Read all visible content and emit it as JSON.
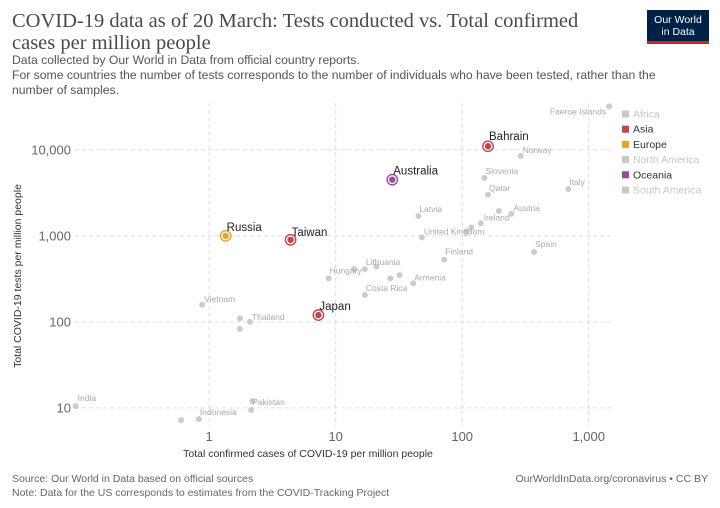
{
  "title": "COVID-19 data as of 20 March: Tests conducted vs. Total confirmed cases per million people",
  "subtitle": [
    "Data collected by Our World in Data from official country reports.",
    "For some countries the number of tests corresponds to the number of individuals who have been tested, rather than the",
    "number of samples."
  ],
  "logo": {
    "line1": "Our World",
    "line2": "in Data"
  },
  "footer": {
    "source": "Source: Our World in Data based on official sources",
    "note": "Note: Data for the US corresponds to estimates from the COVID-Tracking Project",
    "url_license": "OurWorldInData.org/coronavirus • CC BY"
  },
  "colors": {
    "highlight": {
      "Asia": "#c4454d",
      "Europe": "#e8a42a",
      "Oceania": "#9b4aa0"
    },
    "muted_point": "#cccccc",
    "muted_label": "#aaaaaa",
    "legend_muted": "#c8c8c8"
  },
  "chart_data": {
    "type": "scatter",
    "title": "COVID-19 data as of 20 March: Tests conducted vs. Total confirmed cases per million people",
    "xlabel": "Total confirmed cases of COVID-19 per million people",
    "ylabel": "Total COVID-19 tests per million people",
    "x_scale": "log",
    "y_scale": "log",
    "xlim": [
      0.087,
      1500
    ],
    "ylim": [
      6,
      35000
    ],
    "x_ticks": [
      {
        "value": 1,
        "label": "1"
      },
      {
        "value": 10,
        "label": "10"
      },
      {
        "value": 100,
        "label": "100"
      },
      {
        "value": 1000,
        "label": "1,000"
      }
    ],
    "y_ticks": [
      {
        "value": 10,
        "label": "10"
      },
      {
        "value": 100,
        "label": "100"
      },
      {
        "value": 1000,
        "label": "1,000"
      },
      {
        "value": 10000,
        "label": "10,000"
      }
    ],
    "grid": true,
    "legend_position": "right",
    "legend": [
      {
        "name": "Africa",
        "active": false
      },
      {
        "name": "Asia",
        "active": true
      },
      {
        "name": "Europe",
        "active": true
      },
      {
        "name": "North America",
        "active": false
      },
      {
        "name": "Oceania",
        "active": true
      },
      {
        "name": "South America",
        "active": false
      }
    ],
    "points": [
      {
        "label": "Bahrain",
        "x": 160,
        "y": 11000,
        "region": "Asia",
        "highlight": true
      },
      {
        "label": "Australia",
        "x": 28,
        "y": 4500,
        "region": "Oceania",
        "highlight": true
      },
      {
        "label": "Russia",
        "x": 1.35,
        "y": 1000,
        "region": "Europe",
        "highlight": true
      },
      {
        "label": "Taiwan",
        "x": 4.4,
        "y": 900,
        "region": "Asia",
        "highlight": true
      },
      {
        "label": "Japan",
        "x": 7.3,
        "y": 120,
        "region": "Asia",
        "highlight": true
      },
      {
        "label": "Faeroe Islands",
        "x": 1450,
        "y": 32000
      },
      {
        "label": "Norway",
        "x": 290,
        "y": 8500
      },
      {
        "label": "Slovenia",
        "x": 150,
        "y": 4700
      },
      {
        "label": "Qatar",
        "x": 160,
        "y": 3000
      },
      {
        "label": "Italy",
        "x": 690,
        "y": 3500
      },
      {
        "label": "Latvia",
        "x": 45,
        "y": 1700
      },
      {
        "label": "Ireland",
        "x": 140,
        "y": 1400
      },
      {
        "label": "Austria",
        "x": 245,
        "y": 1800
      },
      {
        "label": "United Kingdom",
        "x": 48,
        "y": 960
      },
      {
        "label": "Spain",
        "x": 370,
        "y": 650
      },
      {
        "label": "Finland",
        "x": 72,
        "y": 530
      },
      {
        "label": "Hungary",
        "x": 8.8,
        "y": 320
      },
      {
        "label": "Lithuania",
        "x": 17,
        "y": 410
      },
      {
        "label": "Armenia",
        "x": 41,
        "y": 280
      },
      {
        "label": "Costa Rica",
        "x": 17,
        "y": 205
      },
      {
        "label": "Vietnam",
        "x": 0.88,
        "y": 158
      },
      {
        "label": "Thailand",
        "x": 2.1,
        "y": 100
      },
      {
        "label": "India",
        "x": 0.088,
        "y": 10.5
      },
      {
        "label": "Pakistan",
        "x": 2.15,
        "y": 9.5
      },
      {
        "label": "Indonesia",
        "x": 0.83,
        "y": 7.4
      },
      {
        "label": "",
        "x": 14,
        "y": 410
      },
      {
        "label": "",
        "x": 21,
        "y": 440
      },
      {
        "label": "",
        "x": 27,
        "y": 320
      },
      {
        "label": "",
        "x": 32,
        "y": 350
      },
      {
        "label": "",
        "x": 108,
        "y": 1130
      },
      {
        "label": "",
        "x": 118,
        "y": 1250
      },
      {
        "label": "",
        "x": 195,
        "y": 1950
      },
      {
        "label": "",
        "x": 1.75,
        "y": 110
      },
      {
        "label": "",
        "x": 1.75,
        "y": 83
      },
      {
        "label": "",
        "x": 2.2,
        "y": 12
      },
      {
        "label": "",
        "x": 0.6,
        "y": 7.2
      }
    ]
  }
}
